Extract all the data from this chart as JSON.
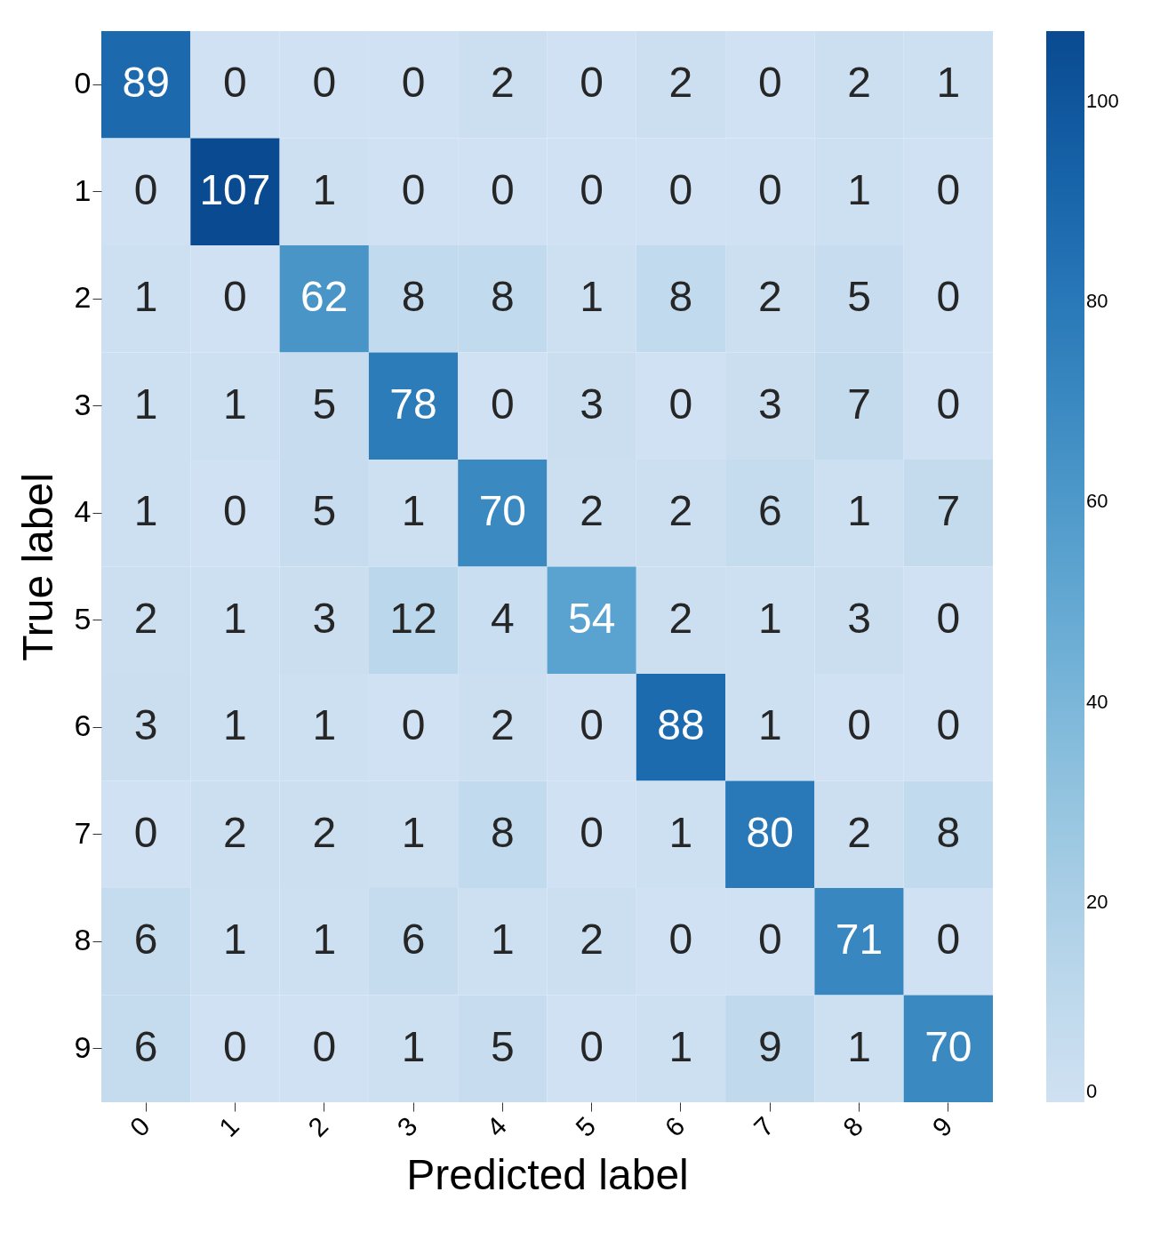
{
  "chart_data": {
    "type": "heatmap",
    "xlabel": "Predicted label",
    "ylabel": "True label",
    "categories": [
      "0",
      "1",
      "2",
      "3",
      "4",
      "5",
      "6",
      "7",
      "8",
      "9"
    ],
    "y_categories": [
      "0",
      "1",
      "2",
      "3",
      "4",
      "5",
      "6",
      "7",
      "8",
      "9"
    ],
    "cells": [
      [
        89,
        0,
        0,
        0,
        2,
        0,
        2,
        0,
        2,
        1
      ],
      [
        0,
        107,
        1,
        0,
        0,
        0,
        0,
        0,
        1,
        0
      ],
      [
        1,
        0,
        62,
        8,
        8,
        1,
        8,
        2,
        5,
        0
      ],
      [
        1,
        1,
        5,
        78,
        0,
        3,
        0,
        3,
        7,
        0
      ],
      [
        1,
        0,
        5,
        1,
        70,
        2,
        2,
        6,
        1,
        7
      ],
      [
        2,
        1,
        3,
        12,
        4,
        54,
        2,
        1,
        3,
        0
      ],
      [
        3,
        1,
        1,
        0,
        2,
        0,
        88,
        1,
        0,
        0
      ],
      [
        0,
        2,
        2,
        1,
        8,
        0,
        1,
        80,
        2,
        8
      ],
      [
        6,
        1,
        1,
        6,
        1,
        2,
        0,
        0,
        71,
        0
      ],
      [
        6,
        0,
        0,
        1,
        5,
        0,
        1,
        9,
        1,
        70
      ]
    ],
    "clim": [
      0,
      107
    ],
    "cticks": [
      0,
      20,
      40,
      60,
      80,
      100
    ],
    "data_labels": true
  }
}
